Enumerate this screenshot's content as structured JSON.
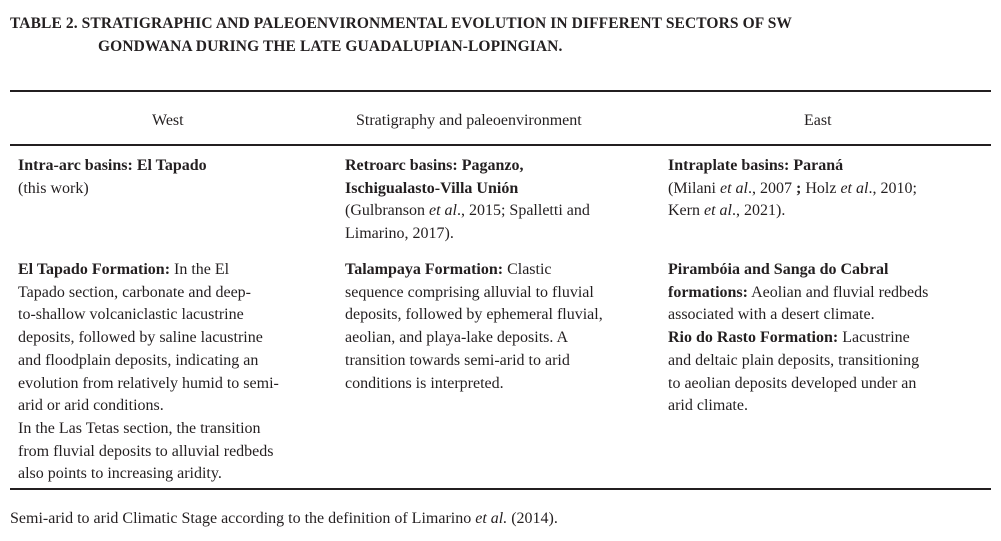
{
  "title": {
    "line1": "TABLE 2. STRATIGRAPHIC AND PALEOENVIRONMENTAL EVOLUTION IN DIFFERENT SECTORS OF SW",
    "line2": "GONDWANA DURING THE LATE GUADALUPIAN-LOPINGIAN."
  },
  "headers": [
    "West",
    "Stratigraphy and paleoenvironment",
    "East"
  ],
  "rows": [
    [
      [
        [
          [
            "b",
            "Intra-arc basins: El Tapado"
          ]
        ],
        [
          [
            "n",
            "(this work)"
          ]
        ]
      ],
      [
        [
          [
            "b",
            "Retroarc basins: Paganzo,"
          ]
        ],
        [
          [
            "b",
            "Ischigualasto-Villa Unión"
          ]
        ],
        [
          [
            "n",
            "(Gulbranson "
          ],
          [
            "i",
            "et al"
          ],
          [
            "n",
            "., 2015; Spalletti and"
          ]
        ],
        [
          [
            "n",
            "Limarino, 2017)."
          ]
        ]
      ],
      [
        [
          [
            "b",
            "Intraplate basins: Paraná"
          ]
        ],
        [
          [
            "n",
            "(Milani "
          ],
          [
            "i",
            "et al"
          ],
          [
            "n",
            "., 2007 "
          ],
          [
            "b",
            ";"
          ],
          [
            "n",
            " Holz "
          ],
          [
            "i",
            "et al"
          ],
          [
            "n",
            "., 2010;"
          ]
        ],
        [
          [
            "n",
            "Kern "
          ],
          [
            "i",
            "et al"
          ],
          [
            "n",
            "., 2021)."
          ]
        ]
      ]
    ],
    [
      [
        [
          [
            "b",
            "El Tapado Formation:"
          ],
          [
            "n",
            " In the El"
          ]
        ],
        [
          [
            "n",
            "Tapado section, carbonate and deep-"
          ]
        ],
        [
          [
            "n",
            "to-shallow volcaniclastic lacustrine"
          ]
        ],
        [
          [
            "n",
            "deposits, followed by saline lacustrine"
          ]
        ],
        [
          [
            "n",
            "and floodplain deposits, indicating an"
          ]
        ],
        [
          [
            "n",
            "evolution from relatively humid to semi-"
          ]
        ],
        [
          [
            "n",
            "arid or arid conditions."
          ]
        ],
        [
          [
            "n",
            "In the Las Tetas section, the transition"
          ]
        ],
        [
          [
            "n",
            "from fluvial deposits to alluvial redbeds"
          ]
        ],
        [
          [
            "n",
            "also points to increasing aridity."
          ]
        ]
      ],
      [
        [
          [
            "b",
            "Talampaya Formation:"
          ],
          [
            "n",
            " Clastic"
          ]
        ],
        [
          [
            "n",
            "sequence comprising alluvial to fluvial"
          ]
        ],
        [
          [
            "n",
            "deposits, followed by ephemeral fluvial,"
          ]
        ],
        [
          [
            "n",
            "aeolian, and playa-lake deposits. A"
          ]
        ],
        [
          [
            "n",
            "transition towards semi-arid to arid"
          ]
        ],
        [
          [
            "n",
            "conditions is interpreted."
          ]
        ]
      ],
      [
        [
          [
            "b",
            "Pirambóia and Sanga do Cabral"
          ]
        ],
        [
          [
            "b",
            "formations:"
          ],
          [
            "n",
            " Aeolian and fluvial redbeds"
          ]
        ],
        [
          [
            "n",
            "associated with a desert climate."
          ]
        ],
        [
          [
            "b",
            "Rio do Rasto Formation:"
          ],
          [
            "n",
            " Lacustrine"
          ]
        ],
        [
          [
            "n",
            "and deltaic plain deposits, transitioning"
          ]
        ],
        [
          [
            "n",
            "to aeolian deposits developed under an"
          ]
        ],
        [
          [
            "n",
            "arid climate."
          ]
        ]
      ]
    ]
  ],
  "footnote": [
    [
      "n",
      "Semi-arid to arid Climatic Stage according to the definition of Limarino "
    ],
    [
      "i",
      "et al."
    ],
    [
      "n",
      " (2014)."
    ]
  ]
}
